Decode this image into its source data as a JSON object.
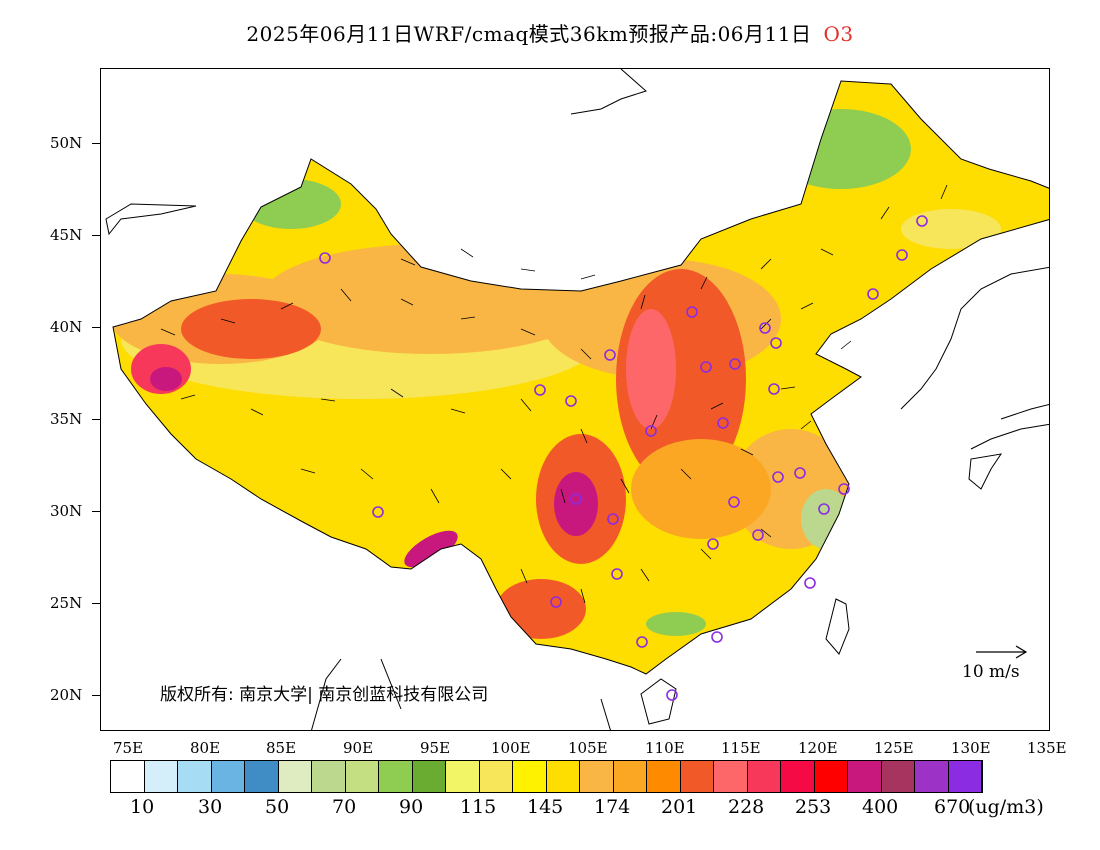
{
  "title": {
    "main": "2025年06月11日WRF/cmaq模式36km预报产品:06月11日",
    "pollutant": "O3"
  },
  "lat_labels": [
    "50N",
    "45N",
    "40N",
    "35N",
    "30N",
    "25N",
    "20N"
  ],
  "lon_labels": [
    "75E",
    "80E",
    "85E",
    "90E",
    "95E",
    "100E",
    "105E",
    "110E",
    "115E",
    "120E",
    "125E",
    "130E",
    "135E"
  ],
  "copyright": "版权所有: 南京大学| 南京创蓝科技有限公司",
  "wind_reference": "10 m/s",
  "colorbar": {
    "colors": [
      "#ffffff",
      "#d4effa",
      "#a7dcf5",
      "#6ab4e4",
      "#3f8dc4",
      "#dfebc0",
      "#bcd88e",
      "#c3df82",
      "#8fcc52",
      "#6aab32",
      "#f2f565",
      "#f7e55a",
      "#fff200",
      "#fedd00",
      "#f9b644",
      "#fca724",
      "#fe8a00",
      "#f15a28",
      "#fe6769",
      "#f8385a",
      "#f50a46",
      "#fe0000",
      "#c8187e",
      "#a6345f",
      "#9d33c6",
      "#8b2be2"
    ],
    "labels": [
      "10",
      "30",
      "50",
      "70",
      "90",
      "115",
      "145",
      "174",
      "201",
      "228",
      "253",
      "400",
      "670"
    ],
    "units": "(ug/m3)"
  }
}
